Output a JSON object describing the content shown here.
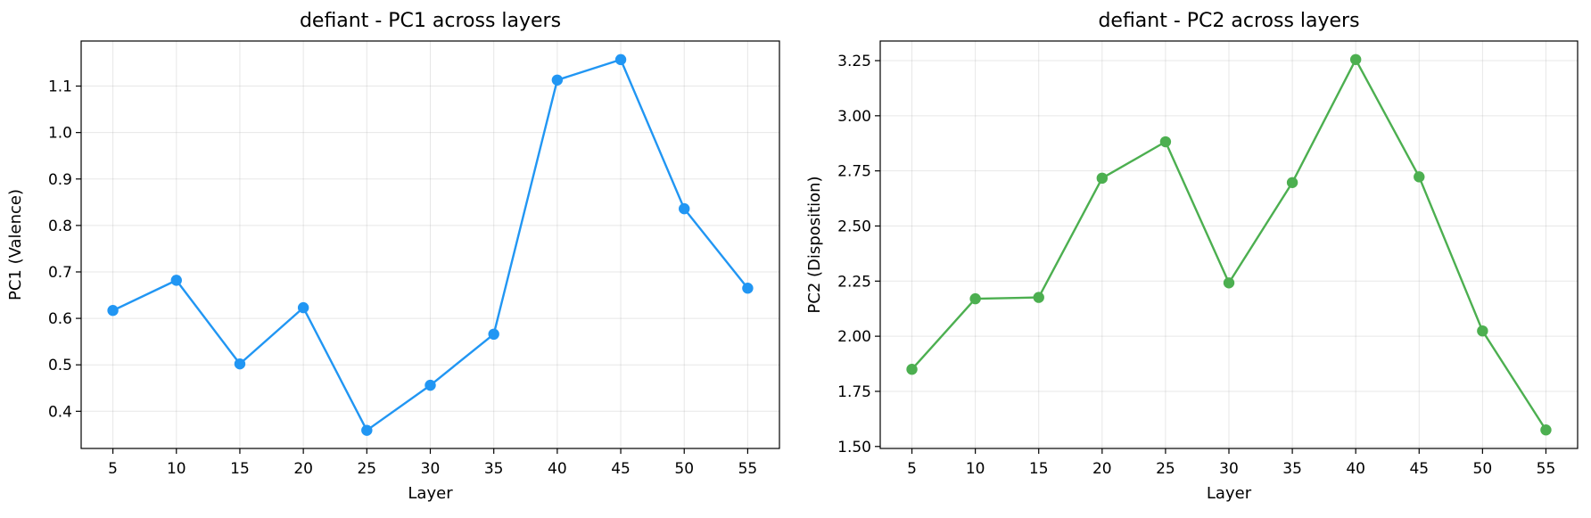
{
  "chart_data": [
    {
      "type": "line",
      "title": "defiant - PC1 across layers",
      "xlabel": "Layer",
      "ylabel": "PC1 (Valence)",
      "x": [
        5,
        10,
        15,
        20,
        25,
        30,
        35,
        40,
        45,
        50,
        55
      ],
      "series": [
        {
          "values": [
            0.617,
            0.682,
            0.502,
            0.623,
            0.359,
            0.456,
            0.566,
            1.113,
            1.157,
            0.836,
            0.665
          ]
        }
      ],
      "xticks": [
        "5",
        "10",
        "15",
        "20",
        "25",
        "30",
        "35",
        "40",
        "45",
        "50",
        "55"
      ],
      "yticks": [
        "0.4",
        "0.5",
        "0.6",
        "0.7",
        "0.8",
        "0.9",
        "1.0",
        "1.1"
      ],
      "xlim": [
        2.5,
        57.5
      ],
      "ylim": [
        0.32,
        1.197
      ],
      "grid": true,
      "color": "#2196F3"
    },
    {
      "type": "line",
      "title": "defiant - PC2 across layers",
      "xlabel": "Layer",
      "ylabel": "PC2 (Disposition)",
      "x": [
        5,
        10,
        15,
        20,
        25,
        30,
        35,
        40,
        45,
        50,
        55
      ],
      "series": [
        {
          "values": [
            1.85,
            2.17,
            2.176,
            2.717,
            2.882,
            2.242,
            2.697,
            3.255,
            2.723,
            2.024,
            1.575
          ]
        }
      ],
      "xticks": [
        "5",
        "10",
        "15",
        "20",
        "25",
        "30",
        "35",
        "40",
        "45",
        "50",
        "55"
      ],
      "yticks": [
        "1.50",
        "1.75",
        "2.00",
        "2.25",
        "2.50",
        "2.75",
        "3.00",
        "3.25"
      ],
      "xlim": [
        2.5,
        57.5
      ],
      "ylim": [
        1.491,
        3.339
      ],
      "grid": true,
      "color": "#4CAF50"
    }
  ]
}
